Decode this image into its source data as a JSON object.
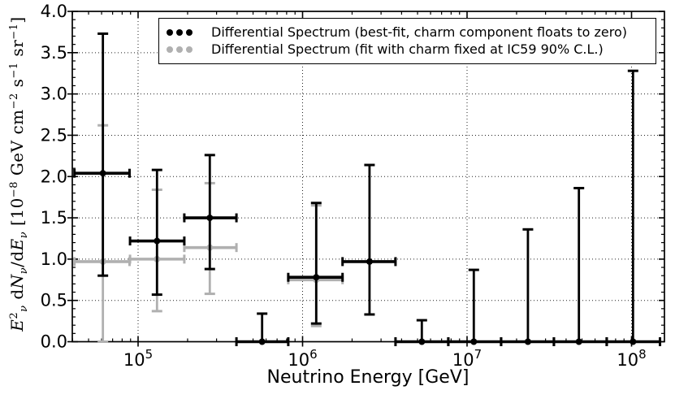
{
  "figure": {
    "background": "#ffffff",
    "axis_color": "#000000",
    "grid_style": "dotted"
  },
  "chart_data": {
    "type": "scatter",
    "title": "",
    "x_axis": {
      "label": "Neutrino Energy [GeV]",
      "scale": "log10",
      "log_min": 4.6,
      "log_max": 8.2,
      "major_ticks_log": [
        5,
        6,
        7,
        8
      ],
      "major_tick_labels": [
        "10^5",
        "10^6",
        "10^7",
        "10^8"
      ],
      "minor_ticks": "log decades 2-9",
      "grid_at_major": true
    },
    "y_axis": {
      "label_plain": "E2v dNv/dEv [10^-8 GeV cm^-2 s^-1 sr^-1]",
      "label_segments": [
        {
          "text": "E",
          "style": "it"
        },
        {
          "text": "2",
          "style": "sup"
        },
        {
          "text": "ν",
          "style": "sub"
        },
        {
          "text": " d",
          "style": "ro"
        },
        {
          "text": "N",
          "style": "it"
        },
        {
          "text": "ν",
          "style": "sub"
        },
        {
          "text": "/d",
          "style": "ro"
        },
        {
          "text": "E",
          "style": "it"
        },
        {
          "text": "ν",
          "style": "sub"
        },
        {
          "text": " [10",
          "style": "ro"
        },
        {
          "text": "−8",
          "style": "sup"
        },
        {
          "text": " GeV cm",
          "style": "ro"
        },
        {
          "text": "−2",
          "style": "sup"
        },
        {
          "text": " s",
          "style": "ro"
        },
        {
          "text": "−1",
          "style": "sup"
        },
        {
          "text": " sr",
          "style": "ro"
        },
        {
          "text": "−1",
          "style": "sup"
        },
        {
          "text": "]",
          "style": "ro"
        }
      ],
      "min": 0.0,
      "max": 4.0,
      "major_tick_step": 0.5,
      "minor_tick_step": 0.1,
      "major_tick_labels": [
        "0.0",
        "0.5",
        "1.0",
        "1.5",
        "2.0",
        "2.5",
        "3.0",
        "3.5",
        "4.0"
      ],
      "grid_at_major": true
    },
    "units": "10^-8 GeV cm^-2 s^-1 sr^-1",
    "series": [
      {
        "name": "Differential Spectrum (best-fit, charm component floats to zero)",
        "color": "#000000",
        "marker": "circle",
        "points": [
          {
            "log_e": 4.786,
            "log_e_lo": 4.613,
            "log_e_hi": 4.948,
            "y": 2.04,
            "y_lo": 0.8,
            "y_hi": 3.73
          },
          {
            "log_e": 5.115,
            "log_e_lo": 4.951,
            "log_e_hi": 5.281,
            "y": 1.22,
            "y_lo": 0.57,
            "y_hi": 2.08
          },
          {
            "log_e": 5.436,
            "log_e_lo": 5.281,
            "log_e_hi": 5.598,
            "y": 1.5,
            "y_lo": 0.88,
            "y_hi": 2.26
          },
          {
            "log_e": 5.754,
            "log_e_lo": 5.598,
            "log_e_hi": 5.913,
            "y": 0.0,
            "y_lo": 0.0,
            "y_hi": 0.34
          },
          {
            "log_e": 6.083,
            "log_e_lo": 5.913,
            "log_e_hi": 6.243,
            "y": 0.78,
            "y_lo": 0.22,
            "y_hi": 1.68
          },
          {
            "log_e": 6.407,
            "log_e_lo": 6.243,
            "log_e_hi": 6.565,
            "y": 0.97,
            "y_lo": 0.33,
            "y_hi": 2.14
          },
          {
            "log_e": 6.725,
            "log_e_lo": 6.565,
            "log_e_hi": 6.886,
            "y": 0.0,
            "y_lo": 0.0,
            "y_hi": 0.26
          },
          {
            "log_e": 7.041,
            "log_e_lo": 6.886,
            "log_e_hi": 7.207,
            "y": 0.0,
            "y_lo": 0.0,
            "y_hi": 0.87
          },
          {
            "log_e": 7.37,
            "log_e_lo": 7.207,
            "log_e_hi": 7.528,
            "y": 0.0,
            "y_lo": 0.0,
            "y_hi": 1.36
          },
          {
            "log_e": 7.68,
            "log_e_lo": 7.528,
            "log_e_hi": 7.849,
            "y": 0.0,
            "y_lo": 0.0,
            "y_hi": 1.86
          },
          {
            "log_e": 8.009,
            "log_e_lo": 7.849,
            "log_e_hi": 8.173,
            "y": 0.0,
            "y_lo": 0.0,
            "y_hi": 3.28
          }
        ]
      },
      {
        "name": "Differential Spectrum (fit with charm fixed at IC59 90% C.L.)",
        "color": "#b0b0b0",
        "marker": "circle",
        "points": [
          {
            "log_e": 4.786,
            "log_e_lo": 4.613,
            "log_e_hi": 4.948,
            "y": 0.97,
            "y_lo": 0.0,
            "y_hi": 2.62
          },
          {
            "log_e": 5.115,
            "log_e_lo": 4.951,
            "log_e_hi": 5.281,
            "y": 1.0,
            "y_lo": 0.37,
            "y_hi": 1.84
          },
          {
            "log_e": 5.436,
            "log_e_lo": 5.281,
            "log_e_hi": 5.598,
            "y": 1.14,
            "y_lo": 0.58,
            "y_hi": 1.92
          },
          {
            "log_e": 6.083,
            "log_e_lo": 5.913,
            "log_e_hi": 6.243,
            "y": 0.75,
            "y_lo": 0.19,
            "y_hi": 1.65
          }
        ]
      }
    ],
    "legend": {
      "position": "upper center-right",
      "marker_dots_per_entry": 3,
      "border_color": "#000000"
    }
  }
}
